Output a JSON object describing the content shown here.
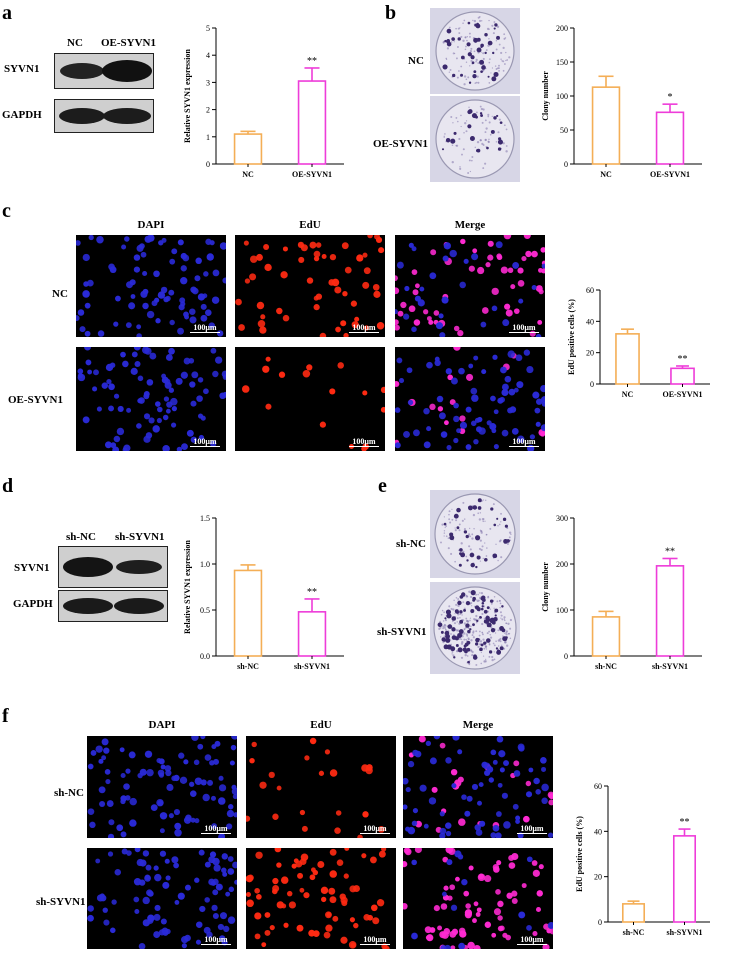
{
  "panels": {
    "a": {
      "label": "a",
      "blot": {
        "lanes": [
          "NC",
          "OE-SYVN1"
        ],
        "rows": [
          "SYVN1",
          "GAPDH"
        ]
      }
    },
    "b": {
      "label": "b",
      "dishes": [
        "NC",
        "OE-SYVN1"
      ]
    },
    "c": {
      "label": "c",
      "columns": [
        "DAPI",
        "EdU",
        "Merge"
      ],
      "rows": [
        "NC",
        "OE-SYVN1"
      ],
      "scalebar": "100μm"
    },
    "d": {
      "label": "d",
      "blot": {
        "lanes": [
          "sh-NC",
          "sh-SYVN1"
        ],
        "rows": [
          "SYVN1",
          "GAPDH"
        ]
      }
    },
    "e": {
      "label": "e",
      "dishes": [
        "sh-NC",
        "sh-SYVN1"
      ]
    },
    "f": {
      "label": "f",
      "columns": [
        "DAPI",
        "EdU",
        "Merge"
      ],
      "rows": [
        "sh-NC",
        "sh-SYVN1"
      ],
      "scalebar": "100μm"
    }
  },
  "colors": {
    "control": "#f4ae56",
    "treatment": "#ee3cd9",
    "dapi": "#2a2ad8",
    "edu": "#ff2a12",
    "dish": "#d7d6e6",
    "colony": "#3c2a6e"
  },
  "chart_data": [
    {
      "panel": "a",
      "type": "bar",
      "categories": [
        "NC",
        "OE-SYVN1"
      ],
      "values": [
        1.1,
        3.05
      ],
      "errors": [
        0.1,
        0.48
      ],
      "significance": [
        "",
        "**"
      ],
      "ylabel": "Relative SYVN1 expression",
      "ylim": [
        0,
        5
      ],
      "yticks": [
        0,
        1,
        2,
        3,
        4,
        5
      ],
      "ytick_labels": [
        "0",
        "1",
        "2",
        "3",
        "4",
        "5"
      ]
    },
    {
      "panel": "b",
      "type": "bar",
      "categories": [
        "NC",
        "OE-SYVN1"
      ],
      "values": [
        113,
        76
      ],
      "errors": [
        16,
        12
      ],
      "significance": [
        "",
        "*"
      ],
      "ylabel": "Clony number",
      "ylim": [
        0,
        200
      ],
      "yticks": [
        0,
        50,
        100,
        150,
        200
      ],
      "ytick_labels": [
        "0",
        "50",
        "100",
        "150",
        "200"
      ]
    },
    {
      "panel": "c",
      "type": "bar",
      "categories": [
        "NC",
        "OE-SYVN1"
      ],
      "values": [
        32,
        10
      ],
      "errors": [
        3,
        1.5
      ],
      "significance": [
        "",
        "**"
      ],
      "ylabel": "EdU positive cells (%)",
      "ylim": [
        0,
        60
      ],
      "yticks": [
        0,
        20,
        40,
        60
      ],
      "ytick_labels": [
        "0",
        "20",
        "40",
        "60"
      ]
    },
    {
      "panel": "d",
      "type": "bar",
      "categories": [
        "sh-NC",
        "sh-SYVN1"
      ],
      "values": [
        0.93,
        0.48
      ],
      "errors": [
        0.06,
        0.14
      ],
      "significance": [
        "",
        "**"
      ],
      "ylabel": "Relative SYVN1 expression",
      "ylim": [
        0,
        1.5
      ],
      "yticks": [
        0,
        0.5,
        1.0,
        1.5
      ],
      "ytick_labels": [
        "0.0",
        "0.5",
        "1.0",
        "1.5"
      ]
    },
    {
      "panel": "e",
      "type": "bar",
      "categories": [
        "sh-NC",
        "sh-SYVN1"
      ],
      "values": [
        85,
        196
      ],
      "errors": [
        12,
        16
      ],
      "significance": [
        "",
        "**"
      ],
      "ylabel": "Clony number",
      "ylim": [
        0,
        300
      ],
      "yticks": [
        0,
        100,
        200,
        300
      ],
      "ytick_labels": [
        "0",
        "100",
        "200",
        "300"
      ]
    },
    {
      "panel": "f",
      "type": "bar",
      "categories": [
        "sh-NC",
        "sh-SYVN1"
      ],
      "values": [
        8,
        38
      ],
      "errors": [
        1.2,
        3
      ],
      "significance": [
        "",
        "**"
      ],
      "ylabel": "EdU positive cells (%)",
      "ylim": [
        0,
        60
      ],
      "yticks": [
        0,
        20,
        40,
        60
      ],
      "ytick_labels": [
        "0",
        "20",
        "40",
        "60"
      ]
    }
  ]
}
